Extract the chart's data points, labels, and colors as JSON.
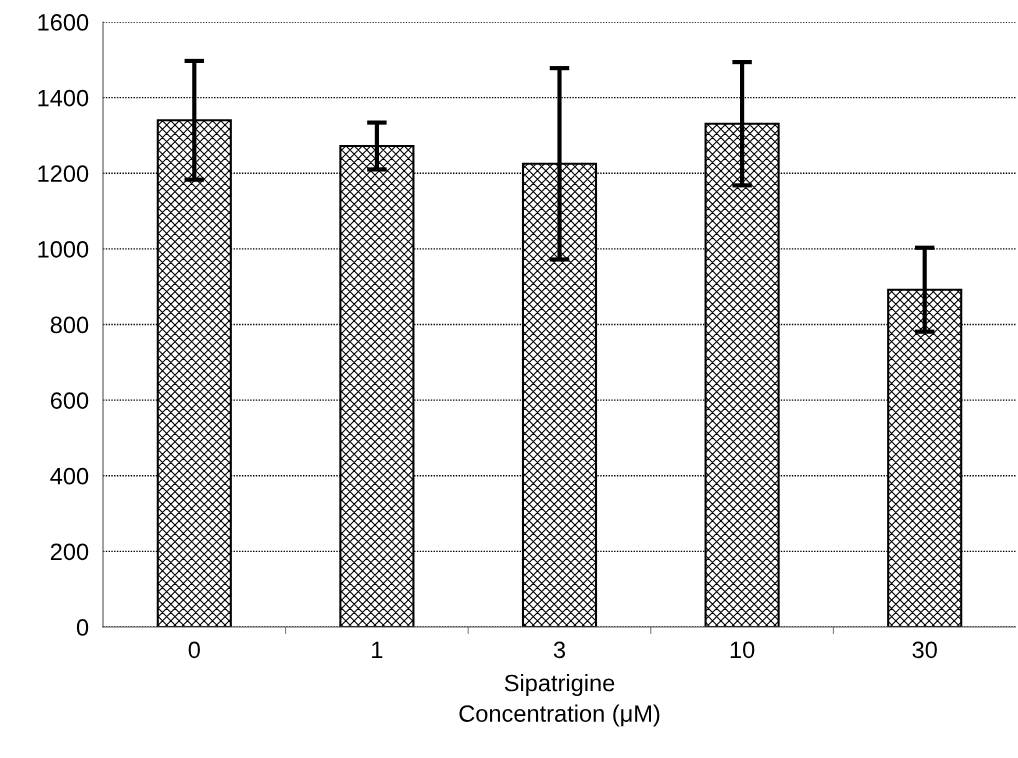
{
  "chart_data": {
    "type": "bar",
    "categories": [
      "0",
      "1",
      "3",
      "10",
      "30"
    ],
    "values": [
      1340,
      1272,
      1225,
      1331,
      892
    ],
    "errors": [
      157,
      62,
      253,
      163,
      111
    ],
    "color": "#000000",
    "xlabel": "Sipatrigine\nConcentration (μM)",
    "ylim": [
      0,
      1600
    ],
    "yticks": [
      0,
      200,
      400,
      600,
      800,
      1000,
      1200,
      1400,
      1600
    ],
    "grid": "y"
  }
}
